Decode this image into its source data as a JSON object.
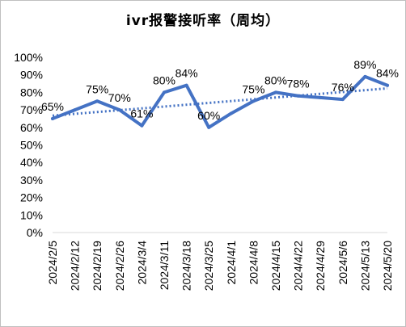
{
  "chart_data": {
    "type": "line",
    "title": "ivr报警接听率（周均）",
    "categories": [
      "2024/2/5",
      "2024/2/12",
      "2024/2/19",
      "2024/2/26",
      "2024/3/4",
      "2024/3/11",
      "2024/3/18",
      "2024/3/25",
      "2024/4/1",
      "2024/4/8",
      "2024/4/15",
      "2024/4/22",
      "2024/4/29",
      "2024/5/6",
      "2024/5/13",
      "2024/5/20"
    ],
    "values": [
      65,
      70,
      75,
      70,
      61,
      80,
      84,
      60,
      68,
      75,
      80,
      78,
      77,
      76,
      89,
      84
    ],
    "data_labels": [
      "65%",
      "",
      "75%",
      "70%",
      "61%",
      "80%",
      "84%",
      "60%",
      "",
      "75%",
      "80%",
      "78%",
      "",
      "76%",
      "89%",
      "84%"
    ],
    "y_ticks": [
      "0%",
      "10%",
      "20%",
      "30%",
      "40%",
      "50%",
      "60%",
      "70%",
      "80%",
      "90%",
      "100%"
    ],
    "ylim": [
      0,
      100
    ],
    "trendline": "linear",
    "grid": false,
    "legend": "none",
    "colors": {
      "series": "#4472c4",
      "trendline": "#4472c4"
    }
  }
}
